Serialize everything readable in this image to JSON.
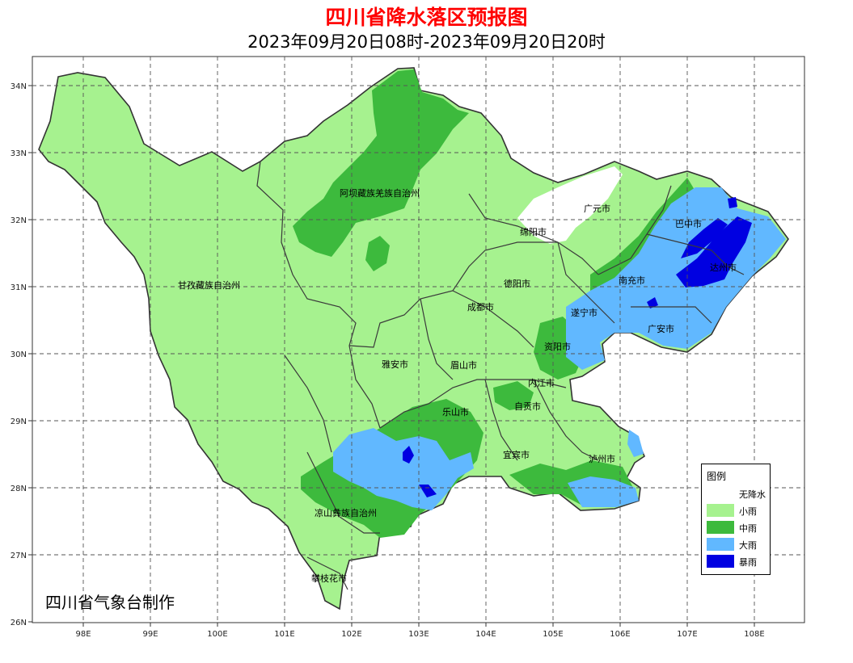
{
  "title": "四川省降水落区预报图",
  "subtitle": "2023年09月20日08时-2023年09月20日20时",
  "credit": "四川省气象台制作",
  "axes": {
    "lon_ticks": [
      "98E",
      "99E",
      "100E",
      "101E",
      "102E",
      "103E",
      "104E",
      "105E",
      "106E",
      "107E",
      "108E"
    ],
    "lat_ticks": [
      "34N",
      "33N",
      "32N",
      "31N",
      "30N",
      "29N",
      "28N",
      "27N",
      "26N"
    ]
  },
  "cities": [
    {
      "name": "阿坝藏族羌族自治州"
    },
    {
      "name": "广元市"
    },
    {
      "name": "绵阳市"
    },
    {
      "name": "巴中市"
    },
    {
      "name": "达州市"
    },
    {
      "name": "甘孜藏族自治州"
    },
    {
      "name": "德阳市"
    },
    {
      "name": "南充市"
    },
    {
      "name": "成都市"
    },
    {
      "name": "遂宁市"
    },
    {
      "name": "广安市"
    },
    {
      "name": "资阳市"
    },
    {
      "name": "雅安市"
    },
    {
      "name": "眉山市"
    },
    {
      "name": "内江市"
    },
    {
      "name": "乐山市"
    },
    {
      "name": "自贡市"
    },
    {
      "name": "宜宾市"
    },
    {
      "name": "泸州市"
    },
    {
      "name": "凉山彝族自治州"
    },
    {
      "name": "攀枝花市"
    }
  ],
  "legend": {
    "title": "图例",
    "items": [
      {
        "label": "无降水",
        "color": "#ffffff"
      },
      {
        "label": "小雨",
        "color": "#a6f28f"
      },
      {
        "label": "中雨",
        "color": "#3dba3d"
      },
      {
        "label": "大雨",
        "color": "#61b8ff"
      },
      {
        "label": "暴雨",
        "color": "#0000e1"
      }
    ]
  },
  "colors": {
    "none": "#ffffff",
    "light": "#a6f28f",
    "moderate": "#3dba3d",
    "heavy": "#61b8ff",
    "storm": "#0000e1",
    "title": "#ff0000"
  }
}
